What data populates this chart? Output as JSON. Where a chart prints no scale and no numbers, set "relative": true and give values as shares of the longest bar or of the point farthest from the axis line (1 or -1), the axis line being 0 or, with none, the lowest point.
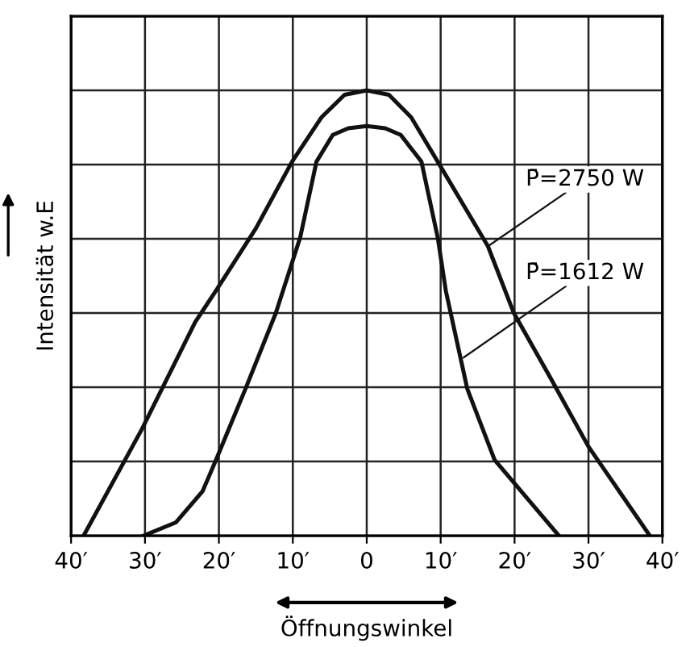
{
  "chart_data": {
    "type": "line",
    "relative": true,
    "grid": true,
    "tick_labels": "x",
    "xlabel": "Öffnungswinkel",
    "ylabel": "Intensität w.E",
    "xlim": [
      -40,
      40
    ],
    "xticks": [
      {
        "value": -40,
        "label": "40′"
      },
      {
        "value": -30,
        "label": "30′"
      },
      {
        "value": -20,
        "label": "20′"
      },
      {
        "value": -10,
        "label": "10′"
      },
      0,
      {
        "value": 10,
        "label": "10′"
      },
      {
        "value": 20,
        "label": "20′"
      },
      {
        "value": 30,
        "label": "30′"
      },
      {
        "value": 40,
        "label": "40′"
      }
    ],
    "series": [
      {
        "name": "P̄=2750 W",
        "color": "#111111",
        "x": [
          -38.3,
          -30.4,
          -23.2,
          -20.4,
          -15,
          -10.1,
          -6.1,
          -3,
          0,
          3,
          6,
          9.6,
          16.4,
          19.9,
          25,
          30,
          38.3
        ],
        "values": [
          0,
          0.24,
          0.48,
          0.55,
          0.69,
          0.84,
          0.94,
          0.99,
          1.0,
          0.99,
          0.94,
          0.84,
          0.65,
          0.5,
          0.35,
          0.2,
          0
        ]
      },
      {
        "name": "P̄=1612 W",
        "color": "#111111",
        "x": [
          -30.2,
          -25.8,
          -22.2,
          -20.4,
          -16.4,
          -12.3,
          -9.0,
          -6.8,
          -4.6,
          -2.5,
          0,
          2.5,
          4.6,
          7.4,
          9.6,
          10.7,
          13.6,
          17.3,
          26
        ],
        "values": [
          0,
          0.03,
          0.1,
          0.17,
          0.33,
          0.5,
          0.67,
          0.84,
          0.9,
          0.915,
          0.92,
          0.915,
          0.9,
          0.84,
          0.67,
          0.55,
          0.33,
          0.17,
          0
        ]
      }
    ]
  }
}
